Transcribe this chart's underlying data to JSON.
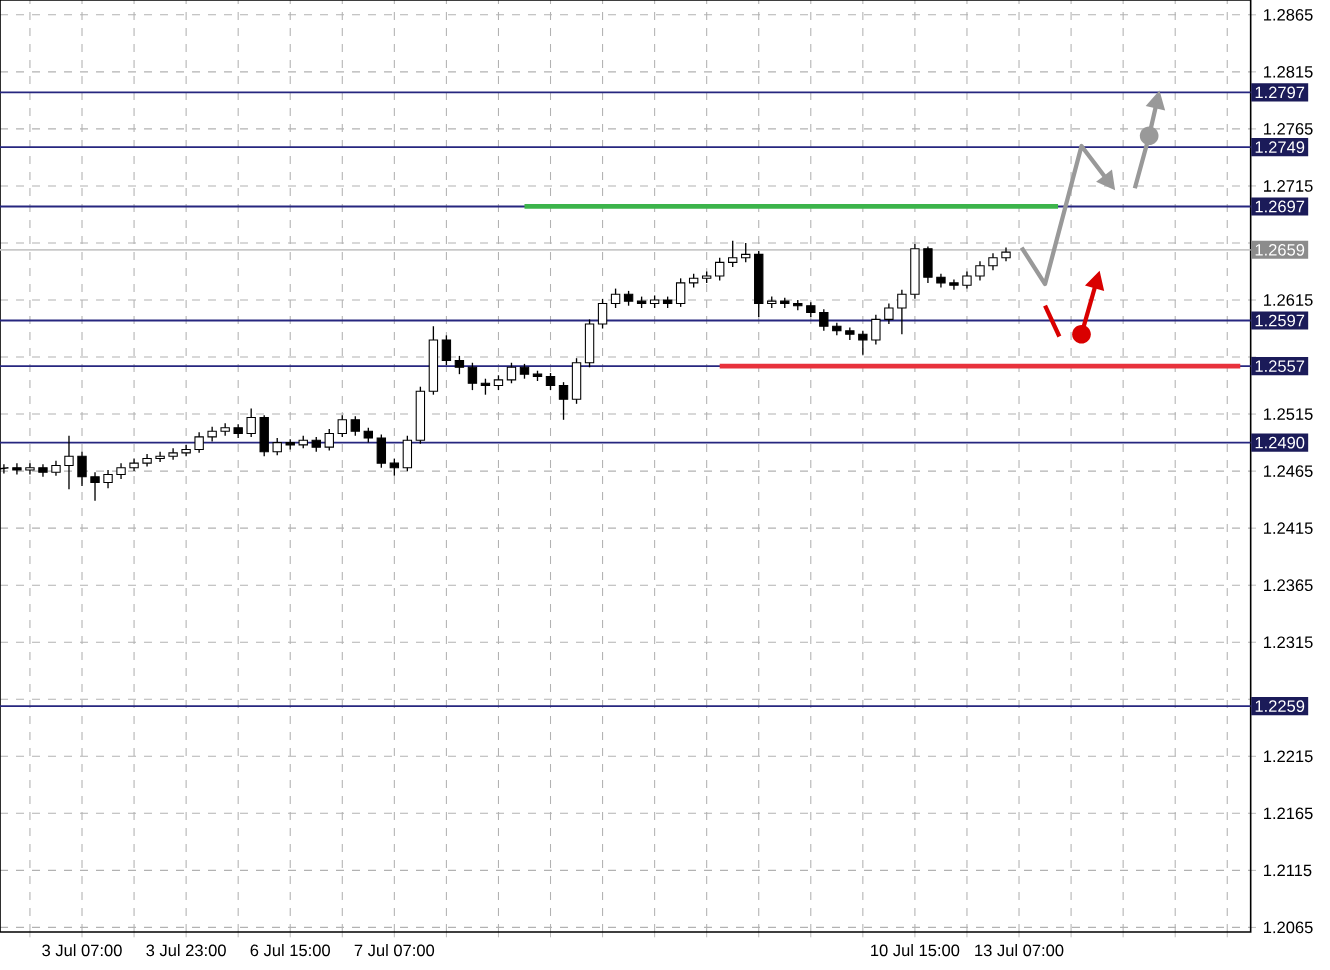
{
  "chart_data": {
    "type": "candlestick",
    "categories": [
      null,
      null,
      null,
      null,
      null,
      null,
      "3 Jul 07:00",
      null,
      null,
      null,
      null,
      null,
      null,
      null,
      "3 Jul 23:00",
      null,
      null,
      null,
      null,
      null,
      null,
      null,
      "6 Jul 15:00",
      null,
      null,
      null,
      null,
      null,
      null,
      null,
      "7 Jul 07:00",
      null,
      null,
      null,
      null,
      null,
      null,
      null,
      null,
      null,
      null,
      null,
      null,
      null,
      null,
      null,
      null,
      null,
      null,
      null,
      null,
      null,
      null,
      null,
      null,
      null,
      null,
      null,
      null,
      null,
      null,
      null,
      null,
      null,
      null,
      null,
      null,
      null,
      null,
      null,
      "10 Jul 15:00",
      null,
      null,
      null,
      null,
      null,
      null,
      null,
      "13 Jul 07:00",
      null,
      null,
      null,
      null,
      null,
      null,
      null,
      null,
      null,
      null,
      null,
      null,
      null,
      null,
      null,
      null,
      null
    ],
    "ohlc": [
      [
        1.2467,
        1.2471,
        1.2463,
        1.2468
      ],
      [
        1.2468,
        1.2472,
        1.2462,
        1.2466
      ],
      [
        1.2466,
        1.2472,
        1.2462,
        1.2468
      ],
      [
        1.2468,
        1.2471,
        1.246,
        1.2464
      ],
      [
        1.2464,
        1.2474,
        1.2461,
        1.247
      ],
      [
        1.247,
        1.2496,
        1.2449,
        1.2478
      ],
      [
        1.2478,
        1.2482,
        1.2452,
        1.246
      ],
      [
        1.246,
        1.2464,
        1.2439,
        1.2455
      ],
      [
        1.2455,
        1.2466,
        1.245,
        1.2462
      ],
      [
        1.2462,
        1.2472,
        1.2458,
        1.2468
      ],
      [
        1.2468,
        1.2476,
        1.2465,
        1.2472
      ],
      [
        1.2472,
        1.248,
        1.2469,
        1.2476
      ],
      [
        1.2476,
        1.2482,
        1.2473,
        1.2478
      ],
      [
        1.2478,
        1.2485,
        1.2475,
        1.2481
      ],
      [
        1.2481,
        1.2488,
        1.2478,
        1.2484
      ],
      [
        1.2484,
        1.2499,
        1.2481,
        1.2495
      ],
      [
        1.2495,
        1.2504,
        1.2491,
        1.25
      ],
      [
        1.25,
        1.2507,
        1.2496,
        1.2503
      ],
      [
        1.2503,
        1.2506,
        1.2494,
        1.2498
      ],
      [
        1.2498,
        1.252,
        1.2495,
        1.2512
      ],
      [
        1.2512,
        1.2514,
        1.2478,
        1.2482
      ],
      [
        1.2482,
        1.2494,
        1.2479,
        1.249
      ],
      [
        1.249,
        1.2493,
        1.2484,
        1.2488
      ],
      [
        1.2488,
        1.2496,
        1.2485,
        1.2492
      ],
      [
        1.2492,
        1.2495,
        1.2482,
        1.2486
      ],
      [
        1.2486,
        1.2502,
        1.2483,
        1.2498
      ],
      [
        1.2498,
        1.2514,
        1.2495,
        1.251
      ],
      [
        1.251,
        1.2513,
        1.2496,
        1.25
      ],
      [
        1.25,
        1.2503,
        1.249,
        1.2494
      ],
      [
        1.2494,
        1.2497,
        1.2468,
        1.2472
      ],
      [
        1.2472,
        1.2476,
        1.2461,
        1.2468
      ],
      [
        1.2468,
        1.2496,
        1.2465,
        1.2492
      ],
      [
        1.2492,
        1.2539,
        1.2489,
        1.2535
      ],
      [
        1.2535,
        1.2592,
        1.2532,
        1.258
      ],
      [
        1.258,
        1.2584,
        1.2558,
        1.2562
      ],
      [
        1.2562,
        1.2566,
        1.255,
        1.2556
      ],
      [
        1.2556,
        1.256,
        1.2536,
        1.2542
      ],
      [
        1.2542,
        1.2546,
        1.2532,
        1.254
      ],
      [
        1.254,
        1.2549,
        1.2536,
        1.2545
      ],
      [
        1.2545,
        1.256,
        1.2542,
        1.2556
      ],
      [
        1.2556,
        1.2559,
        1.2546,
        1.255
      ],
      [
        1.255,
        1.2553,
        1.2544,
        1.2548
      ],
      [
        1.2548,
        1.2551,
        1.2536,
        1.254
      ],
      [
        1.254,
        1.2543,
        1.251,
        1.2528
      ],
      [
        1.2528,
        1.2564,
        1.2524,
        1.256
      ],
      [
        1.256,
        1.2598,
        1.2556,
        1.2594
      ],
      [
        1.2594,
        1.2616,
        1.259,
        1.2612
      ],
      [
        1.2612,
        1.2625,
        1.2608,
        1.262
      ],
      [
        1.262,
        1.2623,
        1.261,
        1.2614
      ],
      [
        1.2614,
        1.2618,
        1.2608,
        1.2612
      ],
      [
        1.2612,
        1.2619,
        1.2608,
        1.2615
      ],
      [
        1.2615,
        1.2618,
        1.2608,
        1.2612
      ],
      [
        1.2612,
        1.2634,
        1.2609,
        1.263
      ],
      [
        1.263,
        1.2638,
        1.2626,
        1.2634
      ],
      [
        1.2634,
        1.264,
        1.263,
        1.2636
      ],
      [
        1.2636,
        1.2652,
        1.2632,
        1.2648
      ],
      [
        1.2648,
        1.2667,
        1.2644,
        1.2652
      ],
      [
        1.2652,
        1.2665,
        1.2648,
        1.2655
      ],
      [
        1.2655,
        1.2658,
        1.26,
        1.2612
      ],
      [
        1.2612,
        1.2618,
        1.2608,
        1.2614
      ],
      [
        1.2614,
        1.2617,
        1.2608,
        1.2612
      ],
      [
        1.2612,
        1.2615,
        1.2606,
        1.261
      ],
      [
        1.261,
        1.2613,
        1.26,
        1.2604
      ],
      [
        1.2604,
        1.2607,
        1.2588,
        1.2592
      ],
      [
        1.2592,
        1.2595,
        1.2584,
        1.2588
      ],
      [
        1.2588,
        1.2591,
        1.258,
        1.2585
      ],
      [
        1.2585,
        1.2588,
        1.2567,
        1.258
      ],
      [
        1.258,
        1.2602,
        1.2576,
        1.2598
      ],
      [
        1.2598,
        1.2612,
        1.2594,
        1.2608
      ],
      [
        1.2608,
        1.2624,
        1.2585,
        1.262
      ],
      [
        1.262,
        1.2664,
        1.2616,
        1.266
      ],
      [
        1.266,
        1.2662,
        1.263,
        1.2635
      ],
      [
        1.2635,
        1.2638,
        1.2626,
        1.263
      ],
      [
        1.263,
        1.2633,
        1.2624,
        1.2628
      ],
      [
        1.2628,
        1.264,
        1.2625,
        1.2636
      ],
      [
        1.2636,
        1.2649,
        1.2632,
        1.2645
      ],
      [
        1.2645,
        1.2656,
        1.2641,
        1.2652
      ],
      [
        1.2652,
        1.2661,
        1.2649,
        1.2657
      ],
      null,
      null,
      null,
      null,
      null,
      null,
      null,
      null,
      null,
      null,
      null,
      null,
      null,
      null,
      null,
      null,
      null,
      null
    ],
    "series": [
      {
        "type": "line",
        "color": "#3cb44b",
        "values": [
          null,
          null,
          null,
          null,
          null,
          null,
          null,
          null,
          null,
          null,
          null,
          null,
          null,
          null,
          null,
          null,
          null,
          null,
          null,
          null,
          null,
          null,
          null,
          null,
          null,
          null,
          null,
          null,
          null,
          null,
          null,
          null,
          null,
          null,
          null,
          null,
          null,
          null,
          null,
          null,
          1.2697,
          1.2697,
          1.2697,
          1.2697,
          1.2697,
          1.2697,
          1.2697,
          1.2697,
          1.2697,
          1.2697,
          1.2697,
          1.2697,
          1.2697,
          1.2697,
          1.2697,
          1.2697,
          1.2697,
          1.2697,
          1.2697,
          1.2697,
          1.2697,
          1.2697,
          1.2697,
          1.2697,
          1.2697,
          1.2697,
          1.2697,
          1.2697,
          1.2697,
          1.2697,
          1.2697,
          1.2697,
          1.2697,
          1.2697,
          1.2697,
          1.2697,
          1.2697,
          1.2697,
          1.2697,
          1.2697,
          1.2697,
          1.2697,
          null,
          null,
          null,
          null,
          null,
          null,
          null,
          null,
          null,
          null,
          null,
          null,
          null,
          null
        ]
      },
      {
        "type": "line",
        "color": "#e8323c",
        "values": [
          null,
          null,
          null,
          null,
          null,
          null,
          null,
          null,
          null,
          null,
          null,
          null,
          null,
          null,
          null,
          null,
          null,
          null,
          null,
          null,
          null,
          null,
          null,
          null,
          null,
          null,
          null,
          null,
          null,
          null,
          null,
          null,
          null,
          null,
          null,
          null,
          null,
          null,
          null,
          null,
          null,
          null,
          null,
          null,
          null,
          null,
          null,
          null,
          null,
          null,
          null,
          null,
          null,
          null,
          null,
          1.2557,
          1.2557,
          1.2557,
          1.2557,
          1.2557,
          1.2557,
          1.2557,
          1.2557,
          1.2557,
          1.2557,
          1.2557,
          1.2557,
          1.2557,
          1.2557,
          1.2557,
          1.2557,
          1.2557,
          1.2557,
          1.2557,
          1.2557,
          1.2557,
          1.2557,
          1.2557,
          1.2557,
          1.2557,
          1.2557,
          1.2557,
          1.2557,
          1.2557,
          1.2557,
          1.2557,
          1.2557,
          1.2557,
          1.2557,
          1.2557,
          1.2557,
          1.2557,
          1.2557,
          1.2557,
          1.2557,
          1.2557
        ]
      }
    ],
    "ylim": [
      1.2061,
      1.2878
    ],
    "yticks": [
      1.2065,
      1.2115,
      1.2165,
      1.2215,
      {
        "value": 1.2265,
        "label": null
      },
      1.2315,
      1.2365,
      1.2415,
      1.2465,
      1.2515,
      {
        "value": 1.2565,
        "label": null
      },
      1.2615,
      {
        "value": 1.2665,
        "label": null
      },
      1.2715,
      1.2765,
      1.2815,
      1.2865
    ],
    "ref_lines": [
      {
        "axis": "y",
        "value": 1.2797,
        "label": "1.2797",
        "color": "#26267f"
      },
      {
        "axis": "y",
        "value": 1.2749,
        "label": "1.2749",
        "color": "#26267f"
      },
      {
        "axis": "y",
        "value": 1.2697,
        "label": "1.2697",
        "color": "#26267f"
      },
      {
        "axis": "y",
        "value": 1.2659,
        "label": "1.2659",
        "color": "#c8c8c8"
      },
      {
        "axis": "y",
        "value": 1.2597,
        "label": "1.2597",
        "color": "#26267f"
      },
      {
        "axis": "y",
        "value": 1.2557,
        "label": "1.2557",
        "color": "#26267f"
      },
      {
        "axis": "y",
        "value": 1.249,
        "label": "1.2490",
        "color": "#26267f"
      },
      {
        "axis": "y",
        "value": 1.2259,
        "label": "1.2259",
        "color": "#26267f"
      }
    ],
    "grid": true
  }
}
